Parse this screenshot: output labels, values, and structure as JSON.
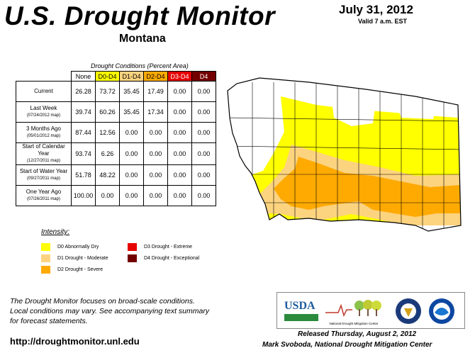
{
  "header": {
    "title": "U.S. Drought Monitor",
    "state": "Montana",
    "date": "July 31, 2012",
    "valid": "Valid 7 a.m. EST"
  },
  "table": {
    "caption": "Drought Conditions (Percent Area)",
    "columns": [
      "None",
      "D0-D4",
      "D1-D4",
      "D2-D4",
      "D3-D4",
      "D4"
    ],
    "column_colors": [
      "#ffffff",
      "#ffff00",
      "#fcd37f",
      "#ffaa00",
      "#e60000",
      "#730000"
    ],
    "rows": [
      {
        "label": "Current",
        "sub": "",
        "values": [
          "26.28",
          "73.72",
          "35.45",
          "17.49",
          "0.00",
          "0.00"
        ]
      },
      {
        "label": "Last Week",
        "sub": "(07/24/2012 map)",
        "values": [
          "39.74",
          "60.26",
          "35.45",
          "17.34",
          "0.00",
          "0.00"
        ]
      },
      {
        "label": "3 Months Ago",
        "sub": "(05/01/2012 map)",
        "values": [
          "87.44",
          "12.56",
          "0.00",
          "0.00",
          "0.00",
          "0.00"
        ]
      },
      {
        "label": "Start of Calendar Year",
        "sub": "(12/27/2011 map)",
        "values": [
          "93.74",
          "6.26",
          "0.00",
          "0.00",
          "0.00",
          "0.00"
        ]
      },
      {
        "label": "Start of Water Year",
        "sub": "(09/27/2011 map)",
        "values": [
          "51.78",
          "48.22",
          "0.00",
          "0.00",
          "0.00",
          "0.00"
        ]
      },
      {
        "label": "One Year Ago",
        "sub": "(07/26/2011 map)",
        "values": [
          "100.00",
          "0.00",
          "0.00",
          "0.00",
          "0.00",
          "0.00"
        ]
      }
    ]
  },
  "legend": {
    "title": "Intensity:",
    "items": [
      {
        "label": "D0 Abnormally Dry",
        "color": "#ffff00"
      },
      {
        "label": "D1 Drought - Moderate",
        "color": "#fcd37f"
      },
      {
        "label": "D2 Drought - Severe",
        "color": "#ffaa00"
      },
      {
        "label": "D3 Drought - Extreme",
        "color": "#e60000"
      },
      {
        "label": "D4 Drought - Exceptional",
        "color": "#730000"
      }
    ]
  },
  "footer": {
    "note_line1": "The Drought Monitor focuses on broad-scale conditions.",
    "note_line2": "Local conditions may vary. See accompanying text summary",
    "note_line3": "for forecast statements.",
    "url": "http://droughtmonitor.unl.edu",
    "released": "Released Thursday, August 2, 2012",
    "author": "Mark Svoboda, National Drought Mitigation Center",
    "logo_usda": "USDA",
    "logo_ndmc": "National Drought Mitigation Center"
  }
}
